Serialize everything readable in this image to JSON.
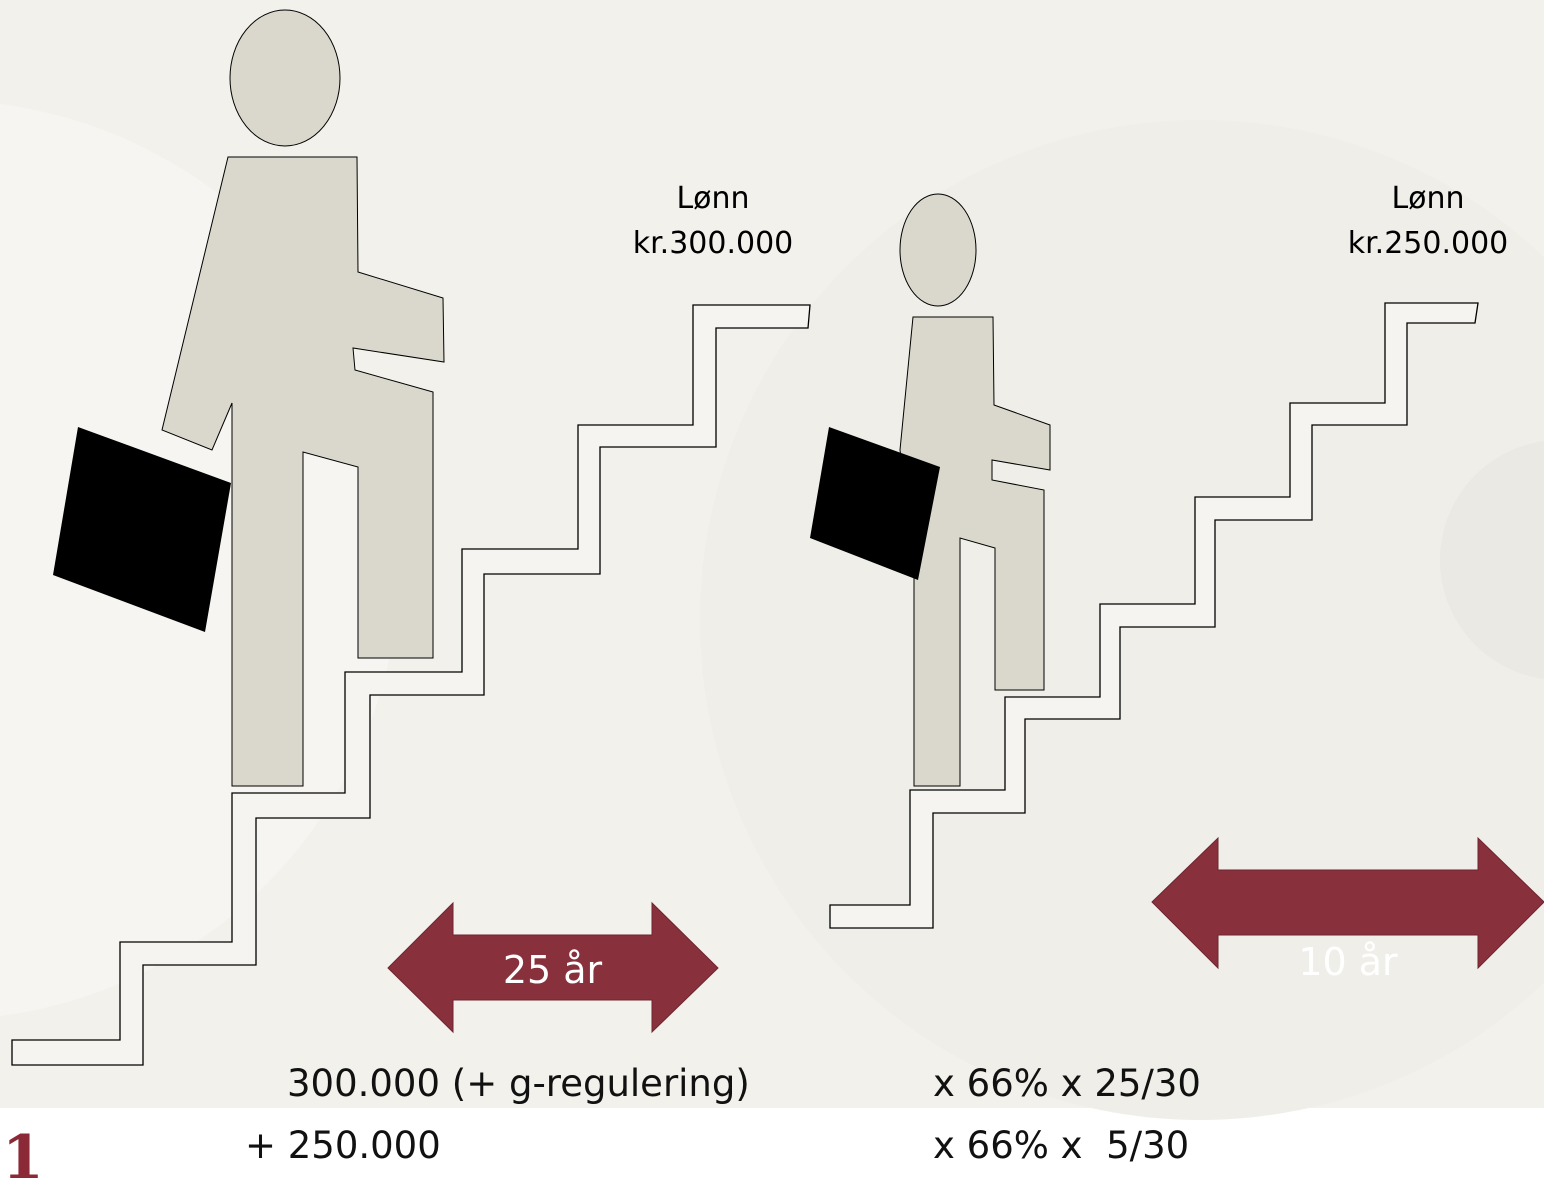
{
  "salary_labels": [
    {
      "label": "Lønn",
      "amount": "kr.300.000"
    },
    {
      "label": "Lønn",
      "amount": "kr.250.000"
    }
  ],
  "arrows": [
    "25 år",
    "10 år"
  ],
  "formula": [
    [
      "300.000 (+ g-regulering)",
      "x 66% x 25/30"
    ],
    [
      "+ 250.000",
      "x 66% x  5/30"
    ]
  ],
  "slide_number": "1"
}
